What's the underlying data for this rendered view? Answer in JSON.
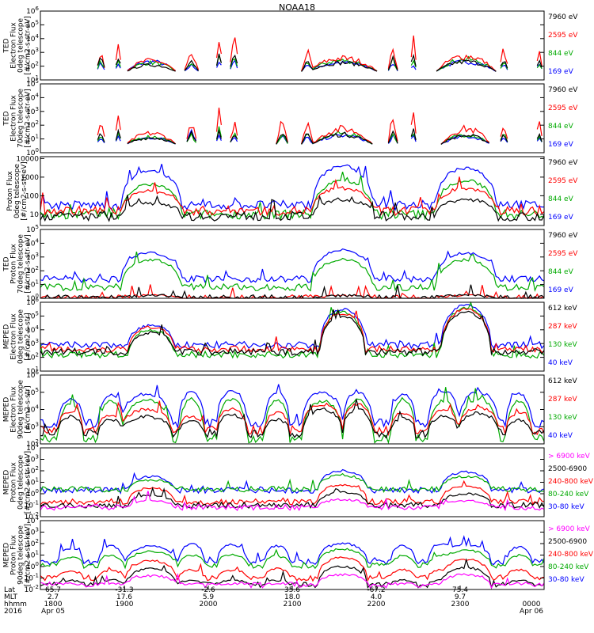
{
  "title": "NOAA18",
  "colors": {
    "black": "#000000",
    "red": "#ff0000",
    "green": "#00dd00",
    "blue": "#0000ff",
    "magenta": "#ff00ff"
  },
  "chart_data": [
    {
      "type": "line",
      "scale": "log",
      "ylabel_lines": [
        "TED",
        "Electron Flux",
        "0deg telescope",
        "[#/cm2-s-str-eV]"
      ],
      "ticks": [
        "10^1",
        "10^2",
        "10^3",
        "10^4",
        "10^5",
        "10^6"
      ],
      "ylim_exp": [
        1,
        6
      ],
      "tick_style": "exp",
      "legend": [
        {
          "label": "7960 eV",
          "color": "#000000"
        },
        {
          "label": "2595 eV",
          "color": "#ff0000"
        },
        {
          "label": "844 eV",
          "color": "#00aa00"
        },
        {
          "label": "169 eV",
          "color": "#0000ff"
        }
      ],
      "bursts": [
        {
          "x": 0.12,
          "w": 0.01,
          "peak": [
            2.9,
            3.2,
            2.6,
            2.4
          ]
        },
        {
          "x": 0.155,
          "w": 0.008,
          "peak": [
            3.0,
            4.5,
            2.6,
            2.3
          ]
        },
        {
          "x": 0.22,
          "w": 0.05,
          "peak": [
            2.2,
            2.6,
            2.4,
            2.5
          ],
          "hump": 1
        },
        {
          "x": 0.3,
          "w": 0.015,
          "peak": [
            2.5,
            3.2,
            2.4,
            2.2
          ]
        },
        {
          "x": 0.355,
          "w": 0.008,
          "peak": [
            3.0,
            5.2,
            3.1,
            2.6
          ]
        },
        {
          "x": 0.385,
          "w": 0.01,
          "peak": [
            3.2,
            4.8,
            3.0,
            2.6
          ]
        },
        {
          "x": 0.53,
          "w": 0.012,
          "peak": [
            2.6,
            3.6,
            2.4,
            2.3
          ]
        },
        {
          "x": 0.6,
          "w": 0.07,
          "peak": [
            2.4,
            2.8,
            2.6,
            2.4
          ],
          "hump": 1
        },
        {
          "x": 0.7,
          "w": 0.01,
          "peak": [
            3.0,
            4.0,
            2.7,
            2.4
          ]
        },
        {
          "x": 0.74,
          "w": 0.008,
          "peak": [
            3.0,
            4.8,
            2.6,
            2.3
          ]
        },
        {
          "x": 0.845,
          "w": 0.06,
          "peak": [
            2.5,
            3.0,
            2.7,
            2.5
          ],
          "hump": 1
        },
        {
          "x": 0.92,
          "w": 0.01,
          "peak": [
            2.8,
            3.8,
            2.6,
            2.4
          ]
        },
        {
          "x": 0.99,
          "w": 0.008,
          "peak": [
            2.7,
            3.4,
            2.4,
            2.3
          ]
        }
      ]
    },
    {
      "type": "line",
      "scale": "log",
      "ylabel_lines": [
        "TED",
        "Electron Flux",
        "70deg telescope",
        "[#/cm2-s-str-eV]"
      ],
      "ticks": [
        "10^0",
        "10^1",
        "10^2",
        "10^3",
        "10^4",
        "10^5"
      ],
      "ylim_exp": [
        0,
        5
      ],
      "tick_style": "exp",
      "legend": [
        {
          "label": "7960 eV",
          "color": "#000000"
        },
        {
          "label": "2595 eV",
          "color": "#ff0000"
        },
        {
          "label": "844 eV",
          "color": "#00aa00"
        },
        {
          "label": "169 eV",
          "color": "#0000ff"
        }
      ],
      "bursts": [
        {
          "x": 0.12,
          "w": 0.01,
          "peak": [
            1.6,
            2.8,
            1.4,
            1.2
          ]
        },
        {
          "x": 0.155,
          "w": 0.008,
          "peak": [
            1.7,
            3.5,
            1.5,
            1.3
          ]
        },
        {
          "x": 0.22,
          "w": 0.05,
          "peak": [
            1.2,
            1.6,
            1.3,
            1.2
          ],
          "hump": 1
        },
        {
          "x": 0.3,
          "w": 0.012,
          "peak": [
            1.6,
            2.6,
            1.4,
            2.0
          ]
        },
        {
          "x": 0.355,
          "w": 0.008,
          "peak": [
            2.0,
            3.6,
            2.0,
            1.5
          ]
        },
        {
          "x": 0.385,
          "w": 0.01,
          "peak": [
            1.8,
            2.7,
            1.6,
            1.4
          ]
        },
        {
          "x": 0.48,
          "w": 0.012,
          "peak": [
            2.0,
            3.4,
            1.6,
            1.5
          ]
        },
        {
          "x": 0.53,
          "w": 0.012,
          "peak": [
            1.6,
            3.0,
            1.6,
            1.3
          ]
        },
        {
          "x": 0.6,
          "w": 0.06,
          "peak": [
            1.5,
            2.0,
            1.6,
            1.4
          ],
          "hump": 1
        },
        {
          "x": 0.7,
          "w": 0.01,
          "peak": [
            2.0,
            3.4,
            1.7,
            1.4
          ]
        },
        {
          "x": 0.74,
          "w": 0.008,
          "peak": [
            2.1,
            3.6,
            1.9,
            1.5
          ]
        },
        {
          "x": 0.845,
          "w": 0.05,
          "peak": [
            1.4,
            2.0,
            1.5,
            1.3
          ],
          "hump": 1
        },
        {
          "x": 0.92,
          "w": 0.01,
          "peak": [
            1.6,
            2.6,
            1.6,
            1.3
          ]
        },
        {
          "x": 0.99,
          "w": 0.008,
          "peak": [
            1.5,
            2.8,
            1.4,
            1.3
          ]
        }
      ]
    },
    {
      "type": "line",
      "scale": "log",
      "ylabel_lines": [
        "Proton Flux",
        "0deg telescope",
        "[#/cm2-s-str-eV]"
      ],
      "ticks": [
        "10",
        "100",
        "1000",
        "10000"
      ],
      "ylim_exp": [
        0.4,
        4.1
      ],
      "tick_style": "linear",
      "legend": [
        {
          "label": "7960 eV",
          "color": "#000000"
        },
        {
          "label": "2595 eV",
          "color": "#ff0000"
        },
        {
          "label": "844 eV",
          "color": "#00aa00"
        },
        {
          "label": "169 eV",
          "color": "#0000ff"
        }
      ],
      "humps": [
        {
          "x": 0.22,
          "w": 0.06,
          "peak": [
            1.6,
            2.2,
            2.6,
            3.3
          ]
        },
        {
          "x": 0.6,
          "w": 0.06,
          "peak": [
            1.8,
            2.4,
            2.8,
            3.6
          ]
        },
        {
          "x": 0.845,
          "w": 0.06,
          "peak": [
            1.8,
            2.4,
            2.8,
            3.5
          ]
        }
      ],
      "noise_base": [
        0.9,
        1.2,
        1.0,
        1.5
      ]
    },
    {
      "type": "line",
      "scale": "log",
      "ylabel_lines": [
        "TED",
        "Proton Flux",
        "70deg telescope",
        "[#/cm2-s-str-eV]"
      ],
      "ticks": [
        "10^0",
        "10^1",
        "10^2",
        "10^3",
        "10^4",
        "10^5"
      ],
      "ylim_exp": [
        0,
        5
      ],
      "tick_style": "exp",
      "legend": [
        {
          "label": "7960 eV",
          "color": "#000000"
        },
        {
          "label": "2595 eV",
          "color": "#ff0000"
        },
        {
          "label": "844 eV",
          "color": "#00aa00"
        },
        {
          "label": "169 eV",
          "color": "#0000ff"
        }
      ],
      "humps": [
        {
          "x": 0.22,
          "w": 0.06,
          "peak": [
            0.2,
            0.2,
            2.8,
            3.3
          ]
        },
        {
          "x": 0.6,
          "w": 0.06,
          "peak": [
            0.2,
            0.2,
            2.8,
            3.5
          ]
        },
        {
          "x": 0.845,
          "w": 0.06,
          "peak": [
            0.2,
            0.2,
            2.8,
            3.3
          ]
        }
      ],
      "noise_base": [
        0.0,
        0.0,
        0.8,
        1.4
      ]
    },
    {
      "type": "line",
      "scale": "log",
      "ylabel_lines": [
        "MEPED",
        "Electron Flux",
        "0deg telescope",
        "[#/cm2-s-str]"
      ],
      "ticks": [
        "10^1",
        "10^2",
        "10^3",
        "10^4",
        "10^5",
        "10^6"
      ],
      "ylim_exp": [
        1,
        6
      ],
      "tick_style": "exp",
      "legend": [
        {
          "label": "612 keV",
          "color": "#000000"
        },
        {
          "label": "287 keV",
          "color": "#ff0000"
        },
        {
          "label": "130 keV",
          "color": "#00aa00"
        },
        {
          "label": "40 keV",
          "color": "#0000ff"
        }
      ],
      "humps": [
        {
          "x": 0.22,
          "w": 0.045,
          "peak": [
            3.8,
            4.2,
            4.0,
            4.3
          ]
        },
        {
          "x": 0.6,
          "w": 0.045,
          "peak": [
            5.0,
            5.2,
            5.3,
            5.5
          ]
        },
        {
          "x": 0.845,
          "w": 0.05,
          "peak": [
            5.3,
            5.5,
            5.6,
            5.8
          ]
        }
      ],
      "noise_base": [
        2.4,
        2.6,
        2.2,
        2.9
      ]
    },
    {
      "type": "line",
      "scale": "log",
      "ylabel_lines": [
        "MEPED",
        "Electron Flux",
        "90deg telescope",
        "[#/cm2-s-str]"
      ],
      "ticks": [
        "10^2",
        "10^3",
        "10^4",
        "10^5",
        "10^6"
      ],
      "ylim_exp": [
        2,
        6
      ],
      "tick_style": "exp",
      "legend": [
        {
          "label": "612 keV",
          "color": "#000000"
        },
        {
          "label": "287 keV",
          "color": "#ff0000"
        },
        {
          "label": "130 keV",
          "color": "#00aa00"
        },
        {
          "label": "40 keV",
          "color": "#0000ff"
        }
      ],
      "humps": [
        {
          "x": 0.06,
          "w": 0.025,
          "peak": [
            3.6,
            3.9,
            4.3,
            4.6
          ]
        },
        {
          "x": 0.14,
          "w": 0.025,
          "peak": [
            3.4,
            3.7,
            4.5,
            4.8
          ]
        },
        {
          "x": 0.21,
          "w": 0.05,
          "peak": [
            3.6,
            4.0,
            4.6,
            4.9
          ]
        },
        {
          "x": 0.3,
          "w": 0.025,
          "peak": [
            3.3,
            3.6,
            4.6,
            5.0
          ]
        },
        {
          "x": 0.38,
          "w": 0.03,
          "peak": [
            3.7,
            4.0,
            4.6,
            5.1
          ]
        },
        {
          "x": 0.47,
          "w": 0.025,
          "peak": [
            3.4,
            3.8,
            4.6,
            5.0
          ]
        },
        {
          "x": 0.56,
          "w": 0.04,
          "peak": [
            4.0,
            4.3,
            4.5,
            5.0
          ]
        },
        {
          "x": 0.63,
          "w": 0.03,
          "peak": [
            4.0,
            4.3,
            4.6,
            5.0
          ]
        },
        {
          "x": 0.72,
          "w": 0.025,
          "peak": [
            3.5,
            3.8,
            4.6,
            4.9
          ]
        },
        {
          "x": 0.8,
          "w": 0.03,
          "peak": [
            3.6,
            4.0,
            4.5,
            5.1
          ]
        },
        {
          "x": 0.87,
          "w": 0.04,
          "peak": [
            3.8,
            4.1,
            4.6,
            5.0
          ]
        },
        {
          "x": 0.95,
          "w": 0.025,
          "peak": [
            3.4,
            3.8,
            4.5,
            4.9
          ]
        }
      ],
      "noise_base": [
        2.6,
        2.8,
        2.3,
        3.2
      ]
    },
    {
      "type": "line",
      "scale": "log",
      "ylabel_lines": [
        "MEPED",
        "Proton Flux",
        "0deg telescope",
        "[#/cm2-s-str-keV]"
      ],
      "ticks": [
        "10^-2",
        "10^-1",
        "10^0",
        "10^1",
        "10^2",
        "10^3",
        "10^4"
      ],
      "ylim_exp": [
        -2,
        4
      ],
      "tick_style": "exp",
      "legend": [
        {
          "label": "> 6900 keV",
          "color": "#ff00ff"
        },
        {
          "label": "2500-6900",
          "color": "#000000"
        },
        {
          "label": "240-800 keV",
          "color": "#ff0000"
        },
        {
          "label": "80-240 keV",
          "color": "#00aa00"
        },
        {
          "label": "30-80 keV",
          "color": "#0000ff"
        }
      ],
      "humps": [
        {
          "x": 0.22,
          "w": 0.045,
          "peak": [
            -0.6,
            -0.1,
            0.5,
            1.2,
            1.5
          ]
        },
        {
          "x": 0.6,
          "w": 0.05,
          "peak": [
            -0.5,
            0.1,
            0.8,
            1.6,
            2.0
          ]
        },
        {
          "x": 0.845,
          "w": 0.05,
          "peak": [
            -0.6,
            0.0,
            0.7,
            1.5,
            1.9
          ]
        }
      ],
      "noise_base": [
        -1.2,
        -1.0,
        -0.7,
        0.4,
        0.3
      ]
    },
    {
      "type": "line",
      "scale": "log",
      "ylabel_lines": [
        "MEPED",
        "Proton Flux",
        "90deg telescope",
        "[#/cm2-s-str-keV]"
      ],
      "ticks": [
        "10^-2",
        "10^-1",
        "10^0",
        "10^1",
        "10^2",
        "10^3",
        "10^4"
      ],
      "ylim_exp": [
        -2,
        4
      ],
      "tick_style": "exp",
      "legend": [
        {
          "label": "> 6900 keV",
          "color": "#ff00ff"
        },
        {
          "label": "2500-6900",
          "color": "#000000"
        },
        {
          "label": "240-800 keV",
          "color": "#ff0000"
        },
        {
          "label": "80-240 keV",
          "color": "#00aa00"
        },
        {
          "label": "30-80 keV",
          "color": "#0000ff"
        }
      ],
      "humps": [
        {
          "x": 0.06,
          "w": 0.025,
          "peak": [
            -1.5,
            -1.2,
            -0.4,
            0.8,
            1.6
          ]
        },
        {
          "x": 0.14,
          "w": 0.025,
          "peak": [
            -1.5,
            -1.2,
            -0.4,
            0.9,
            1.8
          ]
        },
        {
          "x": 0.22,
          "w": 0.05,
          "peak": [
            -0.8,
            -0.2,
            0.5,
            1.3,
            1.8
          ]
        },
        {
          "x": 0.3,
          "w": 0.025,
          "peak": [
            -1.5,
            -1.2,
            -0.3,
            1.0,
            2.0
          ]
        },
        {
          "x": 0.38,
          "w": 0.03,
          "peak": [
            -1.5,
            -1.2,
            -0.3,
            1.0,
            1.9
          ]
        },
        {
          "x": 0.47,
          "w": 0.025,
          "peak": [
            -1.5,
            -1.2,
            -0.2,
            0.9,
            1.8
          ]
        },
        {
          "x": 0.6,
          "w": 0.05,
          "peak": [
            -0.7,
            0.0,
            0.8,
            1.5,
            2.0
          ]
        },
        {
          "x": 0.72,
          "w": 0.025,
          "peak": [
            -1.5,
            -1.2,
            -0.3,
            0.9,
            1.8
          ]
        },
        {
          "x": 0.8,
          "w": 0.03,
          "peak": [
            -1.5,
            -1.2,
            -0.3,
            1.0,
            2.0
          ]
        },
        {
          "x": 0.845,
          "w": 0.05,
          "peak": [
            -0.7,
            -0.1,
            0.6,
            1.4,
            1.9
          ]
        },
        {
          "x": 0.95,
          "w": 0.025,
          "peak": [
            -1.5,
            -1.2,
            -0.3,
            0.9,
            1.7
          ]
        }
      ],
      "noise_base": [
        -1.6,
        -1.6,
        -1.0,
        0.1,
        0.4
      ]
    }
  ],
  "xaxis": {
    "row_labels": [
      "Lat",
      "MLT",
      "hhmm",
      "2016"
    ],
    "ticks": [
      {
        "lat": "65.7",
        "mlt": "2.7",
        "hhmm": "1800",
        "date": "Apr 05"
      },
      {
        "lat": "-31.3",
        "mlt": "17.6",
        "hhmm": "1900",
        "date": ""
      },
      {
        "lat": "-2.6",
        "mlt": "5.9",
        "hhmm": "2000",
        "date": ""
      },
      {
        "lat": "35.6",
        "mlt": "18.0",
        "hhmm": "2100",
        "date": ""
      },
      {
        "lat": "-67.2",
        "mlt": "4.0",
        "hhmm": "2200",
        "date": ""
      },
      {
        "lat": "75.4",
        "mlt": "9.7",
        "hhmm": "2300",
        "date": ""
      },
      {
        "lat": "",
        "mlt": "",
        "hhmm": "0000",
        "date": "Apr 06"
      }
    ]
  }
}
